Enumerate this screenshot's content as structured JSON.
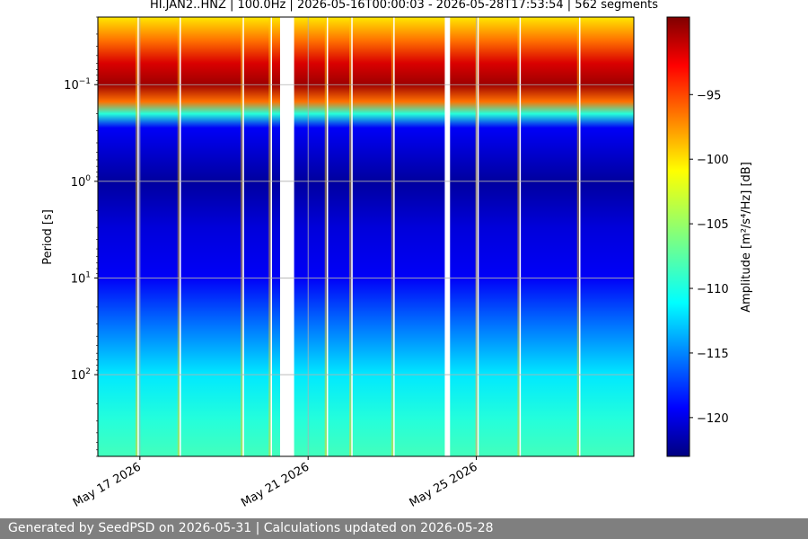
{
  "chart_data": {
    "type": "heatmap",
    "title": "HI.JAN2..HNZ | 100.0Hz | 2026-05-16T00:00:03 - 2026-05-28T17:53:54 | 562 segments",
    "xlabel": "",
    "ylabel": "Period [s]",
    "colorbar_label": "Amplitude [m²/s⁴/Hz] [dB]",
    "colormap": "jet",
    "x_range": [
      "2026-05-16T00:00:03",
      "2026-05-28T17:53:54"
    ],
    "x_ticks": [
      "May 17 2026",
      "May 21 2026",
      "May 25 2026"
    ],
    "y_scale": "log",
    "y_inverted": true,
    "y_range": [
      0.02,
      700
    ],
    "y_ticks": [
      {
        "value": 0.1,
        "base": "10",
        "exp": "−1"
      },
      {
        "value": 1,
        "base": "10",
        "exp": "0"
      },
      {
        "value": 10,
        "base": "10",
        "exp": "1"
      },
      {
        "value": 100,
        "base": "10",
        "exp": "2"
      }
    ],
    "grid": true,
    "colorbar_range": [
      -123,
      -89
    ],
    "colorbar_ticks": [
      -95,
      -100,
      -105,
      -110,
      -115,
      -120
    ],
    "colorbar_tick_labels": [
      "−95",
      "−100",
      "−105",
      "−110",
      "−115",
      "−120"
    ],
    "gaps": [
      {
        "start": "2026-05-20T08:00:00",
        "end": "2026-05-20T16:00:00"
      },
      {
        "start": "2026-05-24T06:00:00",
        "end": "2026-05-24T09:00:00"
      }
    ],
    "vertical_streaks": [
      "2026-05-16T22:00:00",
      "2026-05-17T22:00:00",
      "2026-05-19T10:00:00",
      "2026-05-20T02:00:00",
      "2026-05-21T10:00:00",
      "2026-05-22T00:00:00",
      "2026-05-23T00:00:00",
      "2026-05-25T00:00:00",
      "2026-05-26T00:00:00",
      "2026-05-27T10:00:00"
    ],
    "spectrum_profile": [
      {
        "period": 0.02,
        "db": -101
      },
      {
        "period": 0.035,
        "db": -97
      },
      {
        "period": 0.06,
        "db": -92
      },
      {
        "period": 0.1,
        "db": -90
      },
      {
        "period": 0.15,
        "db": -97
      },
      {
        "period": 0.2,
        "db": -109
      },
      {
        "period": 0.28,
        "db": -119
      },
      {
        "period": 1,
        "db": -122
      },
      {
        "period": 3,
        "db": -120
      },
      {
        "period": 10,
        "db": -119
      },
      {
        "period": 30,
        "db": -115
      },
      {
        "period": 100,
        "db": -111
      },
      {
        "period": 300,
        "db": -109
      },
      {
        "period": 700,
        "db": -108
      }
    ]
  },
  "footer": {
    "text": "Generated by SeedPSD on 2026-05-31 | Calculations updated on 2026-05-28"
  }
}
